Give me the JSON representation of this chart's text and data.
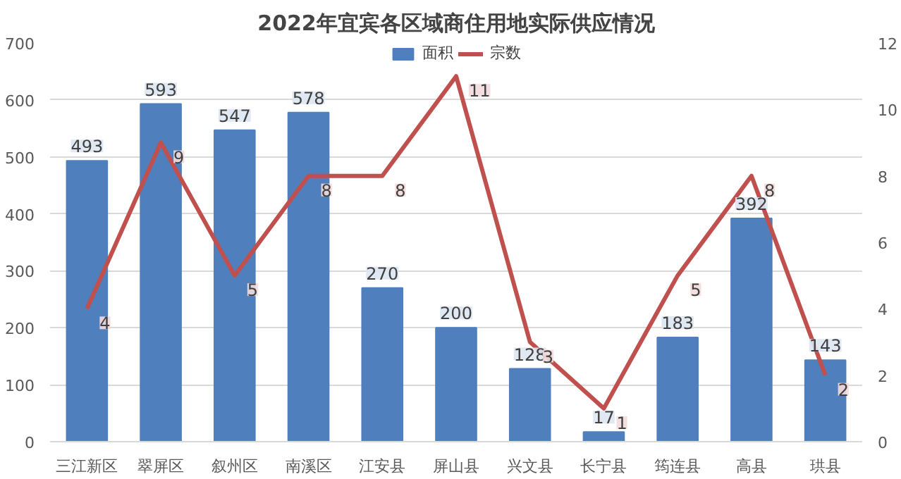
{
  "chart_data": {
    "type": "bar",
    "title": "2022年宜宾各区域商住用地实际供应情况",
    "categories": [
      "三江新区",
      "翠屏区",
      "叙州区",
      "南溪区",
      "江安县",
      "屏山县",
      "兴文县",
      "长宁县",
      "筠连县",
      "高县",
      "珙县"
    ],
    "series": [
      {
        "name": "面积",
        "color": "#4f7fbd",
        "values": [
          493,
          593,
          547,
          578,
          270,
          200,
          128,
          17,
          183,
          392,
          143
        ]
      },
      {
        "name": "宗数",
        "type": "line",
        "axis": "y2",
        "color": "#c0504d",
        "values": [
          4,
          9,
          5,
          8,
          8,
          11,
          3,
          1,
          5,
          8,
          2
        ]
      }
    ],
    "ylim": [
      0,
      700
    ],
    "yticks": [
      0,
      100,
      200,
      300,
      400,
      500,
      600,
      700
    ],
    "y2lim": [
      0,
      12
    ],
    "y2ticks": [
      0,
      2,
      4,
      6,
      8,
      10,
      12
    ],
    "grid": "y",
    "legend": "top",
    "data_labels": true
  }
}
